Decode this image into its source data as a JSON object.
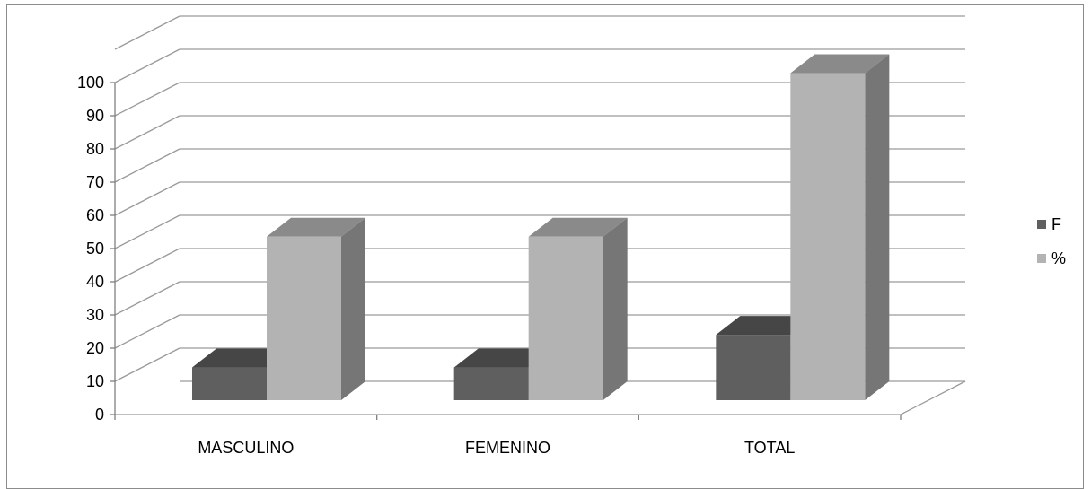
{
  "chart_data": {
    "type": "bar",
    "categories": [
      "MASCULINO",
      "FEMENINO",
      "TOTAL"
    ],
    "series": [
      {
        "name": "F",
        "values": [
          10,
          10,
          20
        ]
      },
      {
        "name": "%",
        "values": [
          50,
          50,
          100
        ]
      }
    ],
    "ylim": [
      0,
      100
    ],
    "ytick_step": 10,
    "legend_position": "right",
    "grid": true,
    "style": "3d-clustered-column",
    "colors": {
      "F": {
        "front": "#5f5f5f",
        "top": "#464646",
        "side": "#3c3c3c"
      },
      "%": {
        "front": "#b3b3b3",
        "top": "#8a8a8a",
        "side": "#767676"
      },
      "gridline": "#9a9a9a"
    }
  }
}
